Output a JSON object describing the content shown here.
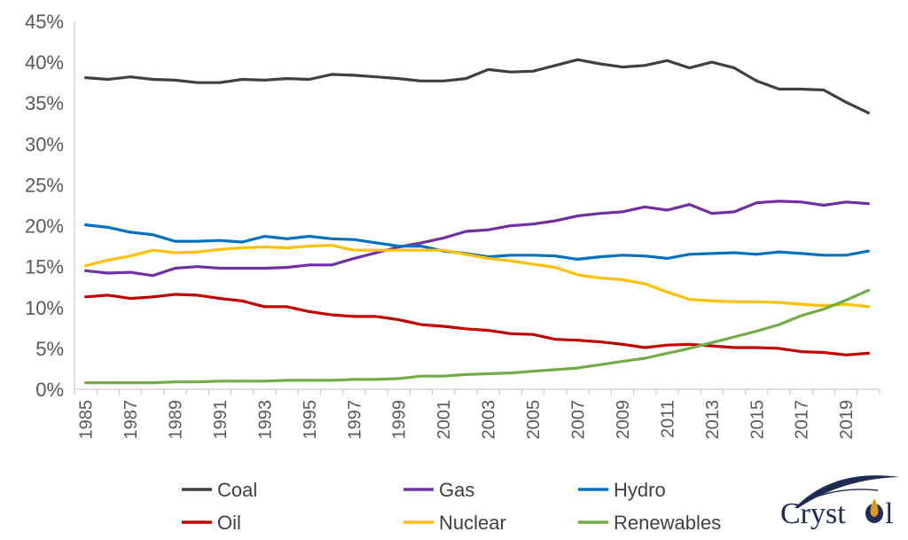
{
  "chart_data": {
    "type": "line",
    "title": "",
    "xlabel": "",
    "ylabel": "",
    "ylim": [
      0,
      45
    ],
    "y_ticks": [
      "0%",
      "5%",
      "10%",
      "15%",
      "20%",
      "25%",
      "30%",
      "35%",
      "40%",
      "45%"
    ],
    "x": [
      1985,
      1986,
      1987,
      1988,
      1989,
      1990,
      1991,
      1992,
      1993,
      1994,
      1995,
      1996,
      1997,
      1998,
      1999,
      2000,
      2001,
      2002,
      2003,
      2004,
      2005,
      2006,
      2007,
      2008,
      2009,
      2010,
      2011,
      2012,
      2013,
      2014,
      2015,
      2016,
      2017,
      2018,
      2019,
      2020
    ],
    "x_tick_labels": [
      "1985",
      "1987",
      "1989",
      "1991",
      "1993",
      "1995",
      "1997",
      "1999",
      "2001",
      "2003",
      "2005",
      "2007",
      "2009",
      "2011",
      "2013",
      "2015",
      "2017",
      "2019"
    ],
    "grid": false,
    "legend_position": "bottom",
    "series": [
      {
        "name": "Coal",
        "color": "#404040",
        "values": [
          38.1,
          37.9,
          38.2,
          37.9,
          37.8,
          37.5,
          37.5,
          37.9,
          37.8,
          38.0,
          37.9,
          38.5,
          38.4,
          38.2,
          38.0,
          37.7,
          37.7,
          38.0,
          39.1,
          38.8,
          38.9,
          39.6,
          40.3,
          39.8,
          39.4,
          39.6,
          40.2,
          39.3,
          40.0,
          39.3,
          37.7,
          36.7,
          36.7,
          36.6,
          35.1,
          33.8
        ]
      },
      {
        "name": "Gas",
        "color": "#7030a0",
        "values": [
          14.5,
          14.2,
          14.3,
          13.9,
          14.8,
          15.0,
          14.8,
          14.8,
          14.8,
          14.9,
          15.2,
          15.2,
          16.0,
          16.7,
          17.4,
          17.9,
          18.5,
          19.3,
          19.5,
          20.0,
          20.2,
          20.6,
          21.2,
          21.5,
          21.7,
          22.3,
          21.9,
          22.6,
          21.5,
          21.7,
          22.8,
          23.0,
          22.9,
          22.5,
          22.9,
          22.7
        ]
      },
      {
        "name": "Hydro",
        "color": "#0070c0",
        "values": [
          20.1,
          19.8,
          19.2,
          18.9,
          18.1,
          18.1,
          18.2,
          18.0,
          18.7,
          18.4,
          18.7,
          18.4,
          18.3,
          17.9,
          17.5,
          17.5,
          16.9,
          16.6,
          16.2,
          16.4,
          16.4,
          16.3,
          15.9,
          16.2,
          16.4,
          16.3,
          16.0,
          16.5,
          16.6,
          16.7,
          16.5,
          16.8,
          16.6,
          16.4,
          16.4,
          16.9
        ]
      },
      {
        "name": "Oil",
        "color": "#c00000",
        "values": [
          11.3,
          11.5,
          11.1,
          11.3,
          11.6,
          11.5,
          11.1,
          10.8,
          10.1,
          10.1,
          9.5,
          9.1,
          8.9,
          8.9,
          8.5,
          7.9,
          7.7,
          7.4,
          7.2,
          6.8,
          6.7,
          6.1,
          6.0,
          5.8,
          5.5,
          5.1,
          5.4,
          5.5,
          5.3,
          5.1,
          5.1,
          5.0,
          4.6,
          4.5,
          4.2,
          4.4
        ]
      },
      {
        "name": "Nuclear",
        "color": "#ffc000",
        "values": [
          15.1,
          15.8,
          16.3,
          17.0,
          16.7,
          16.8,
          17.1,
          17.3,
          17.4,
          17.3,
          17.5,
          17.6,
          17.0,
          17.0,
          17.0,
          17.0,
          17.0,
          16.5,
          16.0,
          15.7,
          15.3,
          14.9,
          14.0,
          13.6,
          13.4,
          12.9,
          11.9,
          11.0,
          10.8,
          10.7,
          10.7,
          10.6,
          10.4,
          10.2,
          10.4,
          10.1
        ]
      },
      {
        "name": "Renewables",
        "color": "#70ad47",
        "values": [
          0.8,
          0.8,
          0.8,
          0.8,
          0.9,
          0.9,
          1.0,
          1.0,
          1.0,
          1.1,
          1.1,
          1.1,
          1.2,
          1.2,
          1.3,
          1.6,
          1.6,
          1.8,
          1.9,
          2.0,
          2.2,
          2.4,
          2.6,
          3.0,
          3.4,
          3.8,
          4.4,
          5.0,
          5.7,
          6.4,
          7.1,
          7.9,
          9.0,
          9.8,
          10.9,
          12.1
        ]
      }
    ]
  },
  "logo": {
    "text": "Cryst",
    "suffix": "l",
    "primary_color": "#1f2a55",
    "accent_color": "#d99a1f"
  }
}
